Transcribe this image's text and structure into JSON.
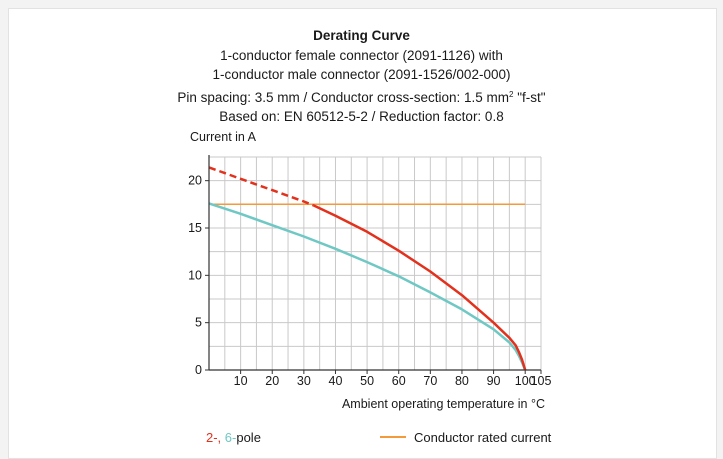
{
  "chart_data": {
    "type": "line",
    "title": "Derating Curve",
    "subtitle_lines": [
      "1-conductor female connector (2091-1126) with",
      "1-conductor male connector (2091-1526/002-000)"
    ],
    "subtitle_line3_before_sup": "Pin spacing: 3.5 mm / Conductor cross-section: 1.5 mm",
    "subtitle_line3_sup": "2",
    "subtitle_line3_after_sup": " \"f-st\"",
    "subtitle_line4": "Based on: EN 60512-5-2 / Reduction factor: 0.8",
    "ylabel": "Current in A",
    "xlabel": "Ambient operating temperature in °C",
    "xlim": [
      0,
      105
    ],
    "ylim": [
      0,
      22.5
    ],
    "x_ticks": [
      "10",
      "20",
      "30",
      "40",
      "50",
      "60",
      "70",
      "80",
      "90",
      "100",
      "105"
    ],
    "y_ticks": [
      "0",
      "5",
      "10",
      "15",
      "20"
    ],
    "grid": true,
    "series": [
      {
        "name": "2-pole",
        "color": "#e2311d",
        "dashed_x": [
          0,
          5,
          10,
          15,
          20,
          25,
          30,
          33
        ],
        "dashed_y": [
          21.4,
          20.8,
          20.2,
          19.6,
          19.0,
          18.4,
          17.8,
          17.4
        ],
        "x": [
          33,
          40,
          50,
          60,
          70,
          80,
          90,
          95,
          97,
          98,
          99,
          100
        ],
        "y": [
          17.4,
          16.3,
          14.6,
          12.6,
          10.4,
          7.9,
          5.0,
          3.4,
          2.6,
          1.9,
          1.1,
          0
        ]
      },
      {
        "name": "6-pole",
        "color": "#6fc8c4",
        "x": [
          0,
          10,
          20,
          30,
          40,
          50,
          60,
          70,
          80,
          90,
          95,
          97,
          98,
          99,
          100
        ],
        "y": [
          17.6,
          16.5,
          15.3,
          14.1,
          12.8,
          11.4,
          9.9,
          8.2,
          6.4,
          4.3,
          2.9,
          2.1,
          1.5,
          0.8,
          0
        ]
      },
      {
        "name": "Conductor rated current",
        "color": "#f39a3c",
        "x": [
          0,
          100
        ],
        "y": [
          17.5,
          17.5
        ]
      }
    ],
    "legend": {
      "pole_part1": "2-,",
      "pole_part2": " 6-",
      "pole_part3": "pole",
      "rated": "Conductor rated current"
    }
  }
}
